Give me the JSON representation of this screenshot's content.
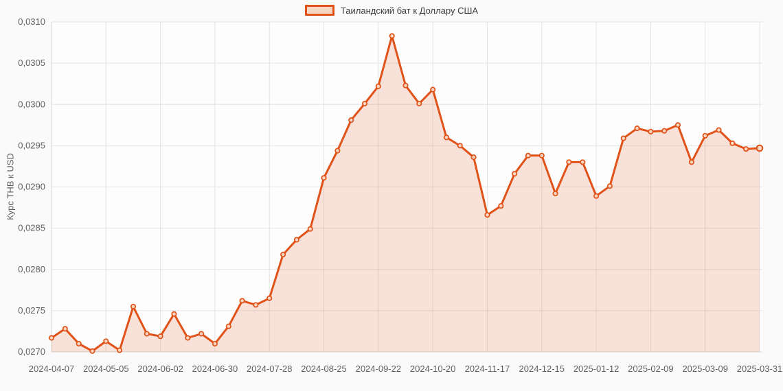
{
  "page": {
    "background": "#fafafa"
  },
  "chart_data": {
    "type": "area",
    "title": "",
    "series_name": "Таиландский бат к Доллару США",
    "ylabel": "Курс THB к USD",
    "xlabel": "",
    "grid": true,
    "legend_position": "top-center",
    "markers": true,
    "x": [
      "2024-04-07",
      "2024-04-14",
      "2024-04-21",
      "2024-04-28",
      "2024-05-05",
      "2024-05-12",
      "2024-05-19",
      "2024-05-26",
      "2024-06-02",
      "2024-06-09",
      "2024-06-16",
      "2024-06-23",
      "2024-06-30",
      "2024-07-07",
      "2024-07-14",
      "2024-07-21",
      "2024-07-28",
      "2024-08-04",
      "2024-08-11",
      "2024-08-18",
      "2024-08-25",
      "2024-09-01",
      "2024-09-08",
      "2024-09-15",
      "2024-09-22",
      "2024-09-29",
      "2024-10-06",
      "2024-10-13",
      "2024-10-20",
      "2024-10-27",
      "2024-11-03",
      "2024-11-10",
      "2024-11-17",
      "2024-11-24",
      "2024-12-01",
      "2024-12-08",
      "2024-12-15",
      "2024-12-22",
      "2024-12-29",
      "2025-01-05",
      "2025-01-12",
      "2025-01-19",
      "2025-01-26",
      "2025-02-02",
      "2025-02-09",
      "2025-02-16",
      "2025-02-23",
      "2025-03-02",
      "2025-03-09",
      "2025-03-16",
      "2025-03-23",
      "2025-03-30",
      "2025-03-31"
    ],
    "values": [
      0.02717,
      0.02728,
      0.0271,
      0.02701,
      0.02713,
      0.02702,
      0.02755,
      0.02722,
      0.02719,
      0.02746,
      0.02717,
      0.02722,
      0.0271,
      0.02731,
      0.02762,
      0.02757,
      0.02765,
      0.02818,
      0.02836,
      0.02849,
      0.02911,
      0.02944,
      0.02981,
      0.03001,
      0.03022,
      0.03083,
      0.03023,
      0.03001,
      0.03018,
      0.0296,
      0.0295,
      0.02936,
      0.02866,
      0.02877,
      0.02916,
      0.02938,
      0.02938,
      0.02892,
      0.0293,
      0.0293,
      0.02889,
      0.02901,
      0.02959,
      0.02971,
      0.02967,
      0.02968,
      0.02975,
      0.0293,
      0.02962,
      0.02969,
      0.02953,
      0.02946,
      0.02947
    ],
    "x_tick_indices": [
      0,
      4,
      8,
      12,
      16,
      20,
      24,
      28,
      32,
      36,
      40,
      44,
      48,
      52
    ],
    "x_tick_labels": [
      "2024-04-07",
      "2024-05-05",
      "2024-06-02",
      "2024-06-30",
      "2024-07-28",
      "2024-08-25",
      "2024-09-22",
      "2024-10-20",
      "2024-11-17",
      "2024-12-15",
      "2025-01-12",
      "2025-02-09",
      "2025-03-09",
      "2025-03-31"
    ],
    "ylim": [
      0.027,
      0.031
    ],
    "y_tick_step": 0.0005,
    "y_tick_labels": [
      "0,0270",
      "0,0275",
      "0,0280",
      "0,0285",
      "0,0290",
      "0,0295",
      "0,0300",
      "0,0305",
      "0,0310"
    ],
    "colors": {
      "line": "#e05218",
      "fill": "rgba(224,82,24,0.16)",
      "marker_fill": "#fad6c2",
      "grid": "#e4e4e4",
      "axis_line": "#d8d8d8",
      "axis_text": "#5e5e5e",
      "legend_text": "#3d3d3d",
      "plot_bg": "#fdfdfd"
    }
  }
}
